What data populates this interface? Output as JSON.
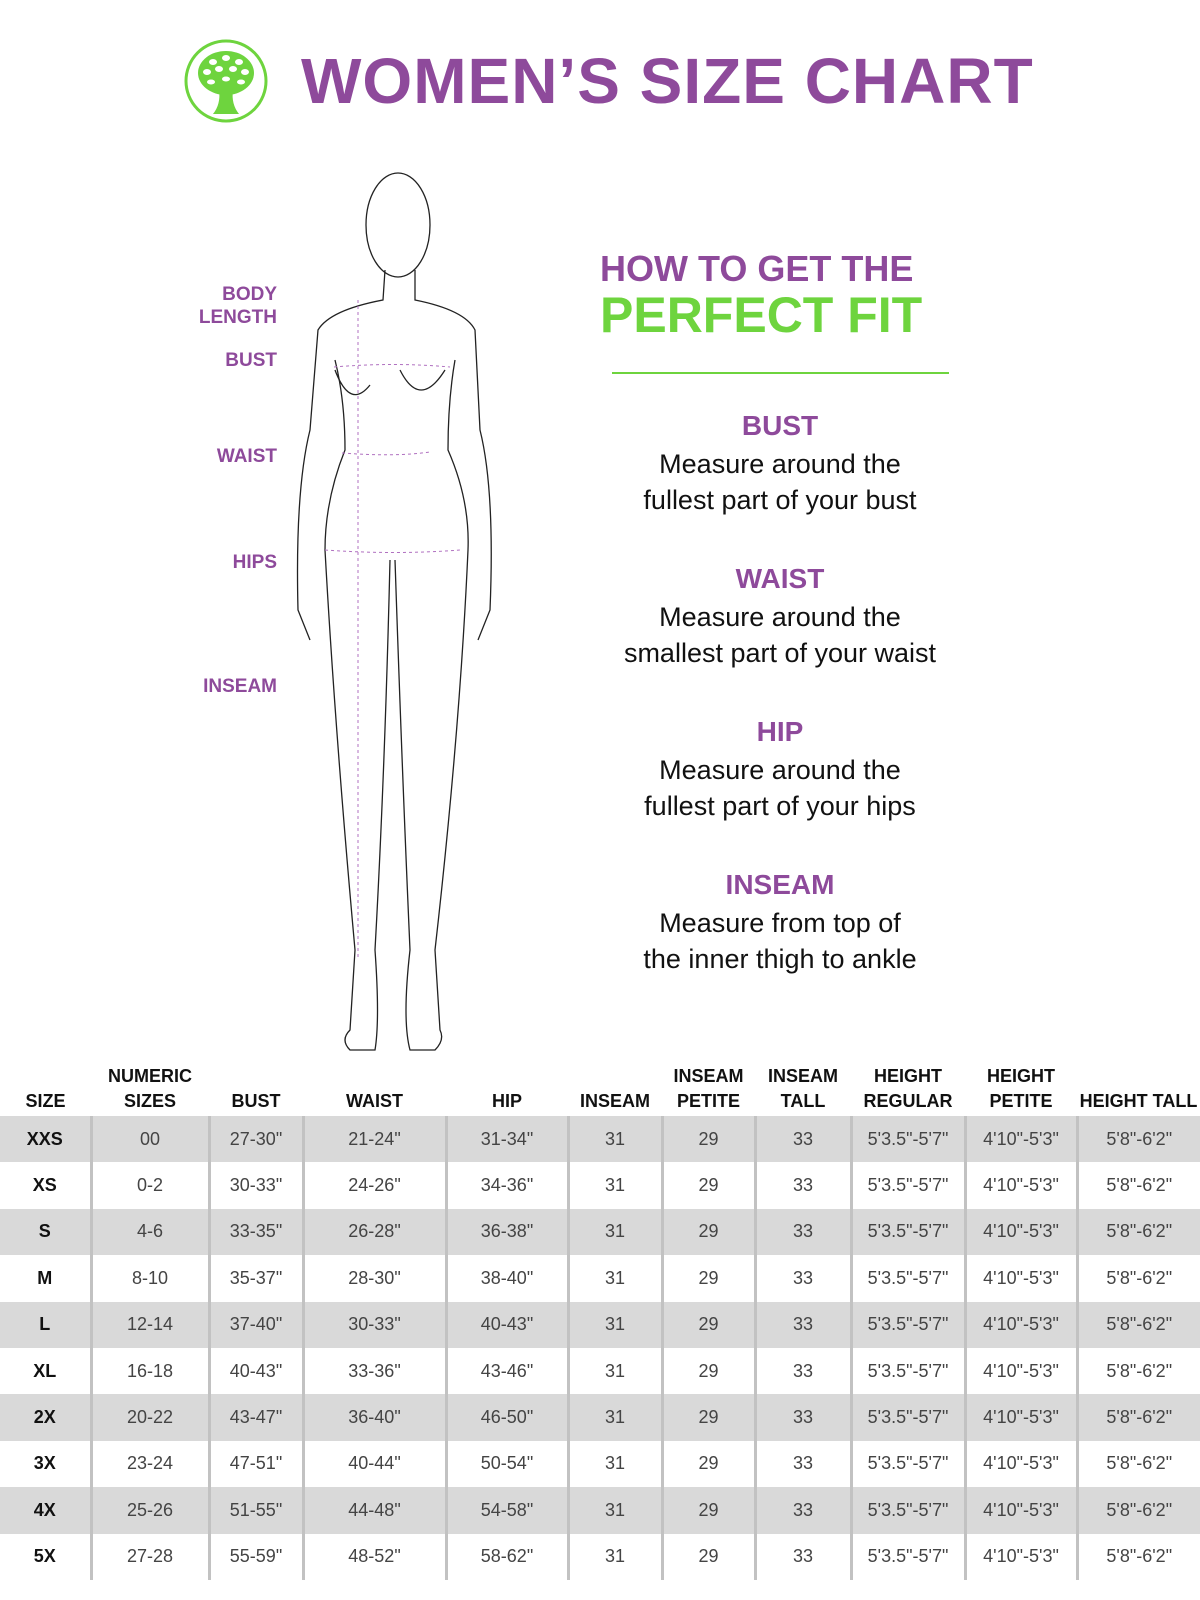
{
  "header": {
    "title": "WOMEN’S SIZE CHART",
    "logo_icon": "tree-logo-icon"
  },
  "colors": {
    "purple": "#8e4a9b",
    "green": "#6ed43e",
    "row_alt": "#d9d9d9"
  },
  "figure_labels": [
    "BODY\nLENGTH",
    "BUST",
    "WAIST",
    "HIPS",
    "INSEAM"
  ],
  "howto": {
    "line1": "HOW TO GET THE",
    "line2": "PERFECT FIT"
  },
  "tips": [
    {
      "title": "BUST",
      "desc1": "Measure around the",
      "desc2": "fullest part of your bust"
    },
    {
      "title": "WAIST",
      "desc1": "Measure around the",
      "desc2": "smallest part of your waist"
    },
    {
      "title": "HIP",
      "desc1": "Measure around the",
      "desc2": "fullest part of your hips"
    },
    {
      "title": "INSEAM",
      "desc1": "Measure from top of",
      "desc2": "the inner thigh to ankle"
    }
  ],
  "table": {
    "headers": [
      "SIZE",
      "NUMERIC SIZES",
      "BUST",
      "WAIST",
      "HIP",
      "INSEAM",
      "INSEAM PETITE",
      "INSEAM TALL",
      "HEIGHT REGULAR",
      "HEIGHT PETITE",
      "HEIGHT TALL"
    ],
    "rows": [
      [
        "XXS",
        "00",
        "27-30\"",
        "21-24\"",
        "31-34\"",
        "31",
        "29",
        "33",
        "5'3.5\"-5'7\"",
        "4'10\"-5'3\"",
        "5'8\"-6'2\""
      ],
      [
        "XS",
        "0-2",
        "30-33\"",
        "24-26\"",
        "34-36\"",
        "31",
        "29",
        "33",
        "5'3.5\"-5'7\"",
        "4'10\"-5'3\"",
        "5'8\"-6'2\""
      ],
      [
        "S",
        "4-6",
        "33-35\"",
        "26-28\"",
        "36-38\"",
        "31",
        "29",
        "33",
        "5'3.5\"-5'7\"",
        "4'10\"-5'3\"",
        "5'8\"-6'2\""
      ],
      [
        "M",
        "8-10",
        "35-37\"",
        "28-30\"",
        "38-40\"",
        "31",
        "29",
        "33",
        "5'3.5\"-5'7\"",
        "4'10\"-5'3\"",
        "5'8\"-6'2\""
      ],
      [
        "L",
        "12-14",
        "37-40\"",
        "30-33\"",
        "40-43\"",
        "31",
        "29",
        "33",
        "5'3.5\"-5'7\"",
        "4'10\"-5'3\"",
        "5'8\"-6'2\""
      ],
      [
        "XL",
        "16-18",
        "40-43\"",
        "33-36\"",
        "43-46\"",
        "31",
        "29",
        "33",
        "5'3.5\"-5'7\"",
        "4'10\"-5'3\"",
        "5'8\"-6'2\""
      ],
      [
        "2X",
        "20-22",
        "43-47\"",
        "36-40\"",
        "46-50\"",
        "31",
        "29",
        "33",
        "5'3.5\"-5'7\"",
        "4'10\"-5'3\"",
        "5'8\"-6'2\""
      ],
      [
        "3X",
        "23-24",
        "47-51\"",
        "40-44\"",
        "50-54\"",
        "31",
        "29",
        "33",
        "5'3.5\"-5'7\"",
        "4'10\"-5'3\"",
        "5'8\"-6'2\""
      ],
      [
        "4X",
        "25-26",
        "51-55\"",
        "44-48\"",
        "54-58\"",
        "31",
        "29",
        "33",
        "5'3.5\"-5'7\"",
        "4'10\"-5'3\"",
        "5'8\"-6'2\""
      ],
      [
        "5X",
        "27-28",
        "55-59\"",
        "48-52\"",
        "58-62\"",
        "31",
        "29",
        "33",
        "5'3.5\"-5'7\"",
        "4'10\"-5'3\"",
        "5'8\"-6'2\""
      ]
    ]
  }
}
